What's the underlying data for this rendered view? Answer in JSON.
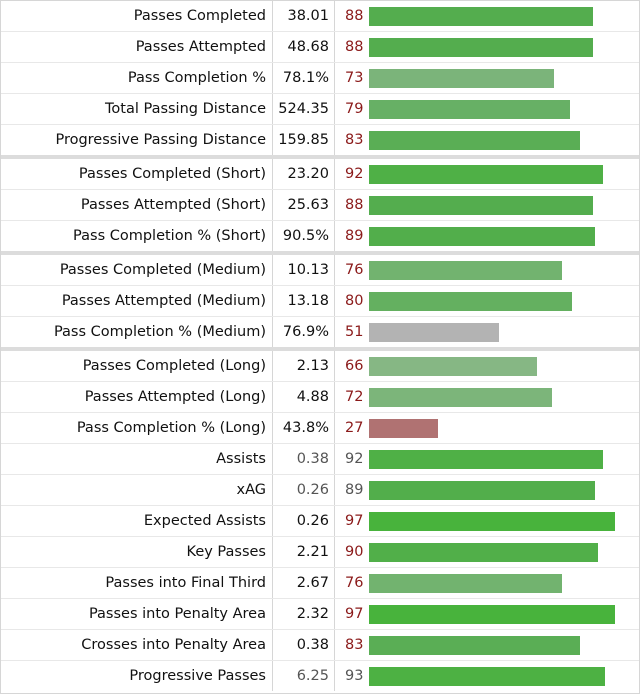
{
  "groups": [
    {
      "name": "total",
      "rows": [
        {
          "stat": "Passes Completed",
          "value": "38.01",
          "percentile": 88,
          "color": "#54ad4e",
          "highlight": true
        },
        {
          "stat": "Passes Attempted",
          "value": "48.68",
          "percentile": 88,
          "color": "#54ad4e",
          "highlight": true
        },
        {
          "stat": "Pass Completion %",
          "value": "78.1%",
          "percentile": 73,
          "color": "#7bb47a",
          "highlight": true
        },
        {
          "stat": "Total Passing Distance",
          "value": "524.35",
          "percentile": 79,
          "color": "#67b065",
          "highlight": true
        },
        {
          "stat": "Progressive Passing Distance",
          "value": "159.85",
          "percentile": 83,
          "color": "#5aae55",
          "highlight": true
        }
      ]
    },
    {
      "name": "short",
      "rows": [
        {
          "stat": "Passes Completed (Short)",
          "value": "23.20",
          "percentile": 92,
          "color": "#4fb046",
          "highlight": true
        },
        {
          "stat": "Passes Attempted (Short)",
          "value": "25.63",
          "percentile": 88,
          "color": "#54ad4e",
          "highlight": true
        },
        {
          "stat": "Pass Completion % (Short)",
          "value": "90.5%",
          "percentile": 89,
          "color": "#52ae4b",
          "highlight": true
        }
      ]
    },
    {
      "name": "medium",
      "rows": [
        {
          "stat": "Passes Completed (Medium)",
          "value": "10.13",
          "percentile": 76,
          "color": "#72b36f",
          "highlight": true
        },
        {
          "stat": "Passes Attempted (Medium)",
          "value": "13.18",
          "percentile": 80,
          "color": "#64b060",
          "highlight": true
        },
        {
          "stat": "Pass Completion % (Medium)",
          "value": "76.9%",
          "percentile": 51,
          "color": "#b3b3b3",
          "highlight": true
        }
      ]
    },
    {
      "name": "long",
      "rows": [
        {
          "stat": "Passes Completed (Long)",
          "value": "2.13",
          "percentile": 66,
          "color": "#86b784",
          "highlight": true
        },
        {
          "stat": "Passes Attempted (Long)",
          "value": "4.88",
          "percentile": 72,
          "color": "#7cb57a",
          "highlight": true
        },
        {
          "stat": "Pass Completion % (Long)",
          "value": "43.8%",
          "percentile": 27,
          "color": "#b07272",
          "highlight": true
        },
        {
          "stat": "Assists",
          "value": "0.38",
          "percentile": 92,
          "color": "#4fb046",
          "highlight": false
        },
        {
          "stat": "xAG",
          "value": "0.26",
          "percentile": 89,
          "color": "#52ae4b",
          "highlight": false
        },
        {
          "stat": "Expected Assists",
          "value": "0.26",
          "percentile": 97,
          "color": "#48b33c",
          "highlight": true
        },
        {
          "stat": "Key Passes",
          "value": "2.21",
          "percentile": 90,
          "color": "#51af49",
          "highlight": true
        },
        {
          "stat": "Passes into Final Third",
          "value": "2.67",
          "percentile": 76,
          "color": "#72b36f",
          "highlight": true
        },
        {
          "stat": "Passes into Penalty Area",
          "value": "2.32",
          "percentile": 97,
          "color": "#48b33c",
          "highlight": true
        },
        {
          "stat": "Crosses into Penalty Area",
          "value": "0.38",
          "percentile": 83,
          "color": "#5aae55",
          "highlight": true
        },
        {
          "stat": "Progressive Passes",
          "value": "6.25",
          "percentile": 93,
          "color": "#4db143",
          "highlight": false
        }
      ]
    }
  ]
}
